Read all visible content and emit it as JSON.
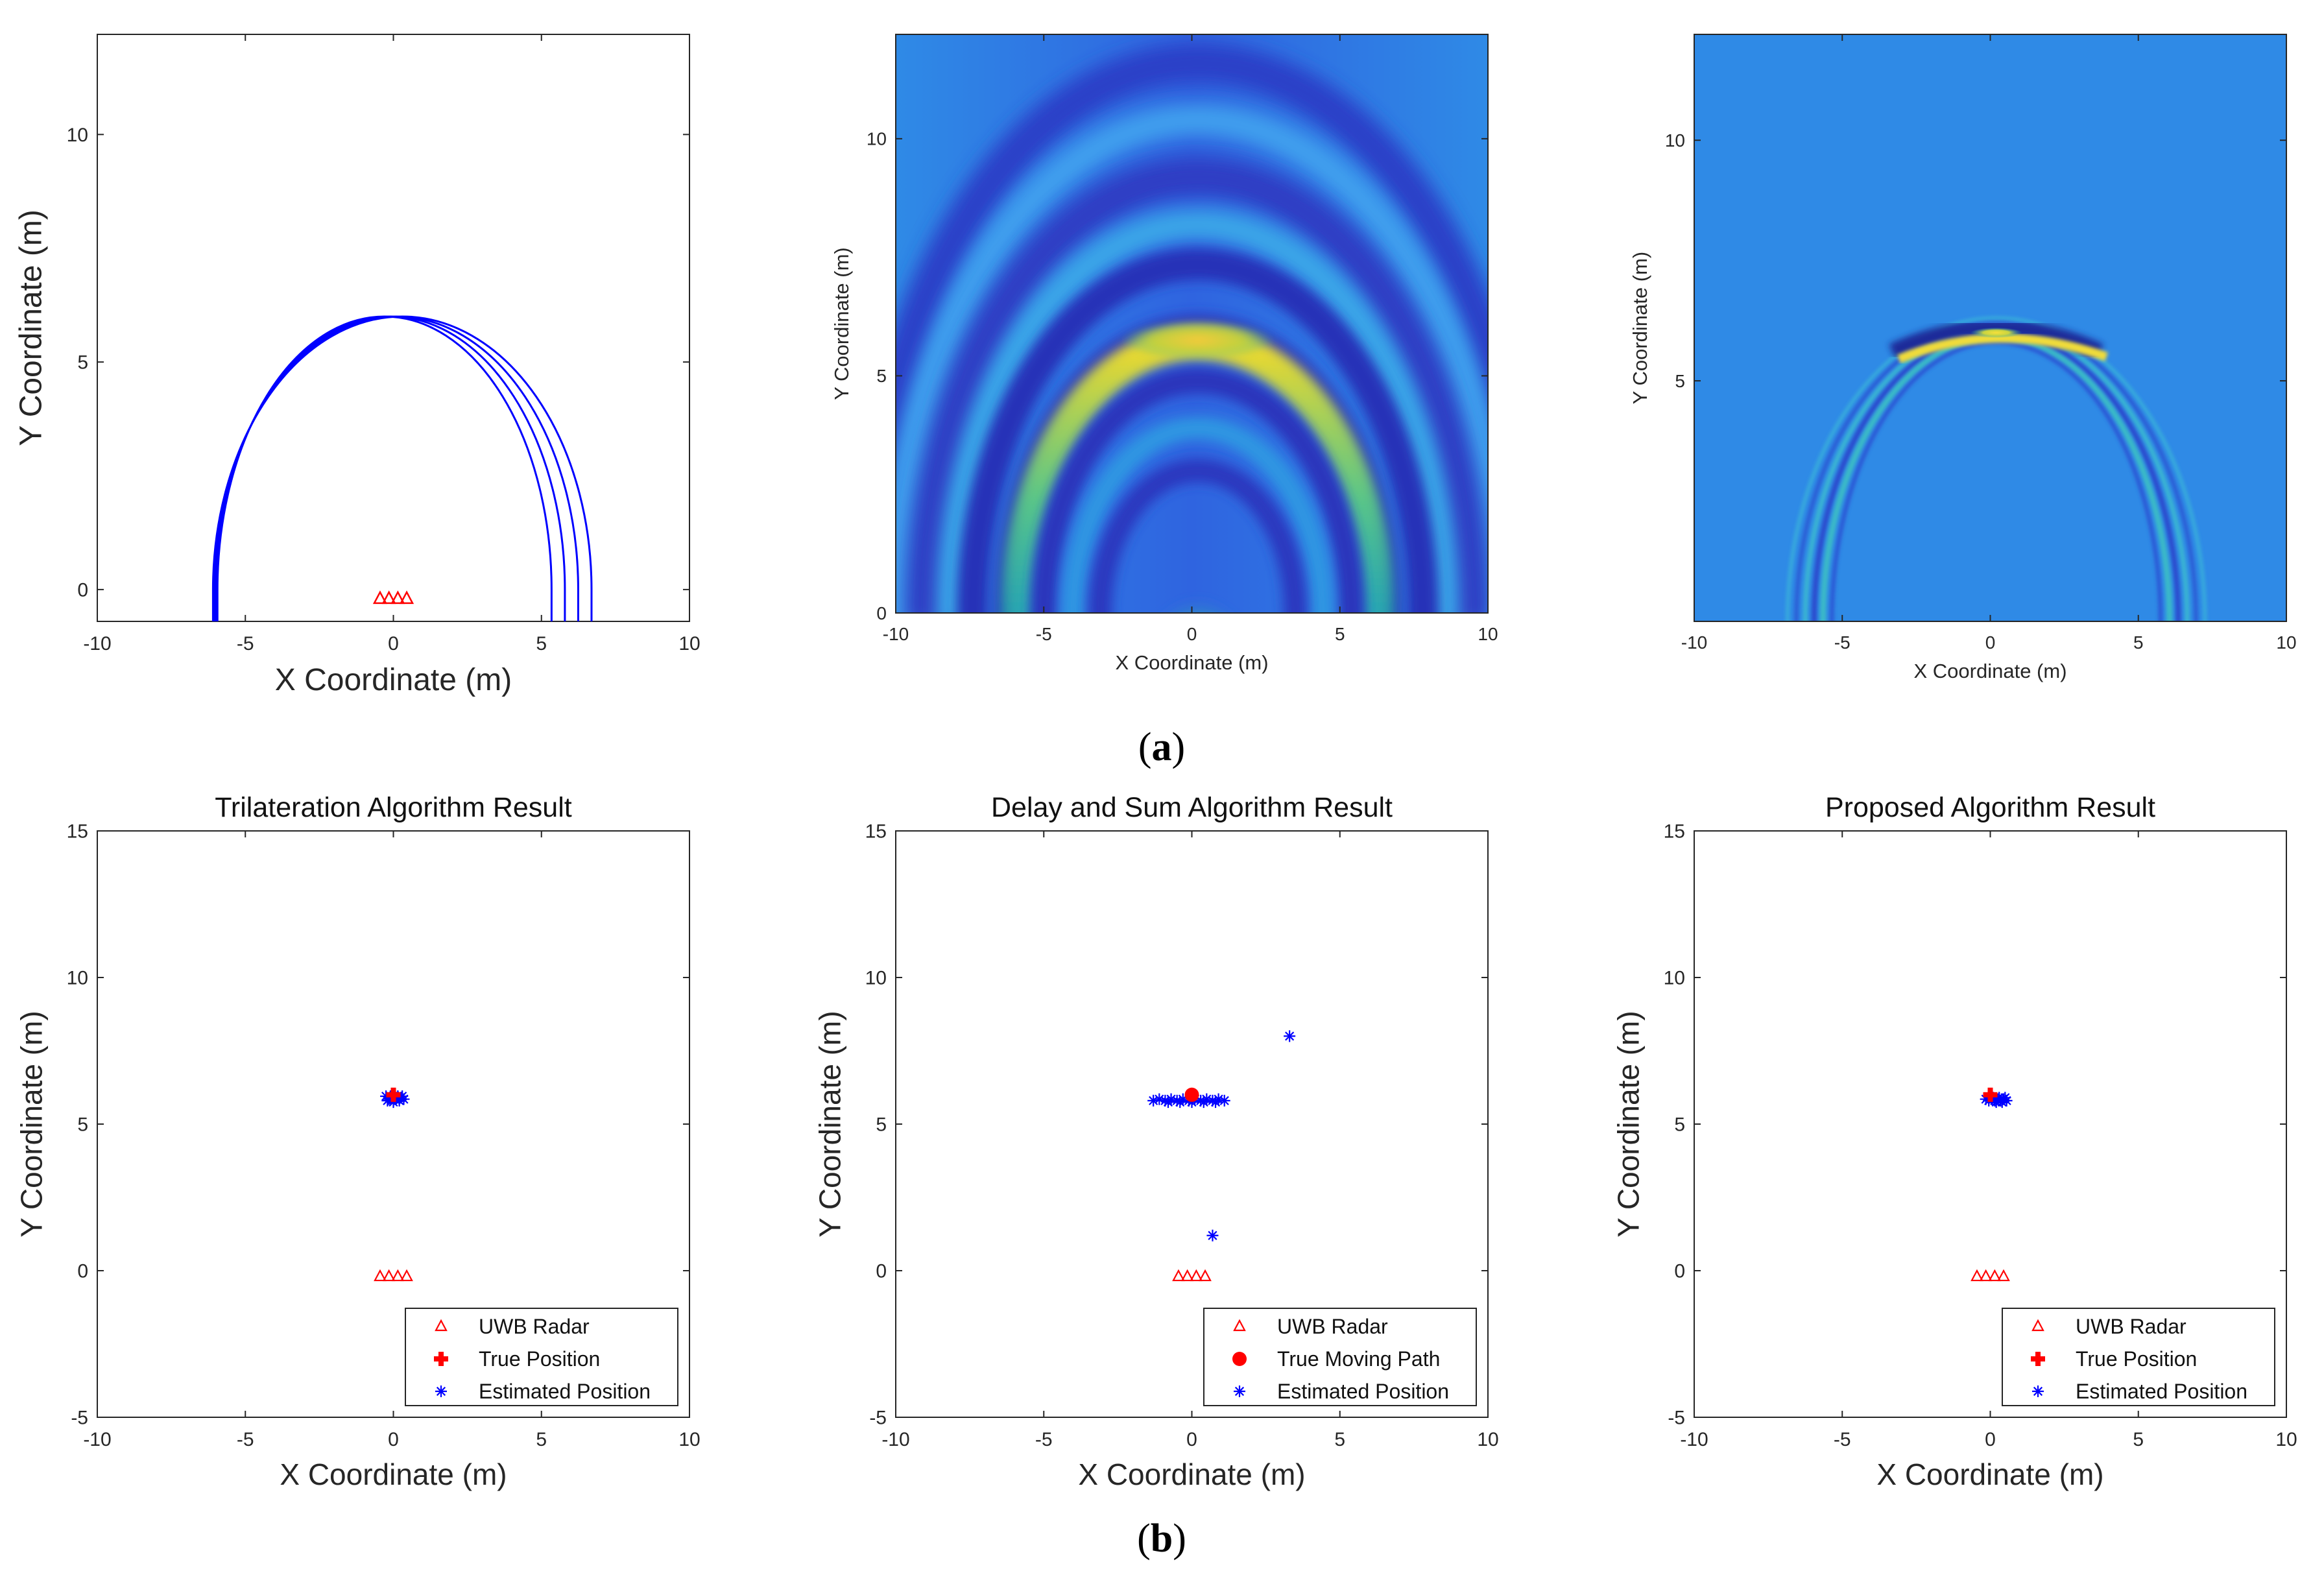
{
  "figure": {
    "label_a": "a",
    "label_b": "b"
  },
  "colors": {
    "contour": "#0000ff",
    "radar": "#ff0000",
    "true_position": "#ff0000",
    "estimated": "#0000ff",
    "axis": "#262626",
    "heatmap_bg_blue": "#2f8ae6"
  },
  "chart_data": [
    {
      "id": "a1",
      "type": "line",
      "title": "",
      "xlabel": "X Coordinate (m)",
      "ylabel": "Y Coordinate (m)",
      "xlim": [
        -10,
        10
      ],
      "ylim": [
        -0.7,
        12.2
      ],
      "xticks": [
        -10,
        -5,
        0,
        5,
        10
      ],
      "xtick_labels": [
        "-10",
        "-5",
        "0",
        "5",
        "10"
      ],
      "yticks": [
        0,
        5,
        10
      ],
      "ytick_labels": [
        "0",
        "5",
        "10"
      ],
      "series": [
        {
          "kind": "ellipse",
          "focus_x": -0.3,
          "y_top": 6.0
        },
        {
          "kind": "ellipse",
          "focus_x": -0.1,
          "y_top": 6.0
        },
        {
          "kind": "ellipse",
          "focus_x": 0.1,
          "y_top": 6.0
        },
        {
          "kind": "ellipse",
          "focus_x": 0.3,
          "y_top": 6.0
        }
      ],
      "radar_x": [
        -0.45,
        -0.15,
        0.15,
        0.45
      ],
      "radar_y": -0.2
    },
    {
      "id": "a2",
      "type": "heatmap",
      "title": "",
      "xlabel": "X Coordinate (m)",
      "ylabel": "Y Coordinate (m)",
      "xlim": [
        -10,
        10
      ],
      "ylim": [
        0,
        12.2
      ],
      "xticks": [
        -10,
        -5,
        0,
        5,
        10
      ],
      "xtick_labels": [
        "-10",
        "-5",
        "0",
        "5",
        "10"
      ],
      "yticks": [
        0,
        5,
        10
      ],
      "ytick_labels": [
        "0",
        "5",
        "10"
      ],
      "peak": {
        "x": 0.2,
        "y": 6.0
      }
    },
    {
      "id": "a3",
      "type": "heatmap",
      "title": "",
      "xlabel": "X Coordinate (m)",
      "ylabel": "Y Coordinate (m)",
      "xlim": [
        -10,
        10
      ],
      "ylim": [
        0,
        12.2
      ],
      "xticks": [
        -10,
        -5,
        0,
        5,
        10
      ],
      "xtick_labels": [
        "-10",
        "-5",
        "0",
        "5",
        "10"
      ],
      "yticks": [
        5,
        10
      ],
      "ytick_labels": [
        "5",
        "10"
      ],
      "peak": {
        "x": 0.2,
        "y": 6.0
      }
    },
    {
      "id": "b1",
      "type": "scatter",
      "title": "Trilateration Algorithm Result",
      "xlabel": "X Coordinate (m)",
      "ylabel": "Y Coordinate (m)",
      "xlim": [
        -10,
        10
      ],
      "ylim": [
        -5,
        15
      ],
      "xticks": [
        -10,
        -5,
        0,
        5,
        10
      ],
      "xtick_labels": [
        "-10",
        "-5",
        "0",
        "5",
        "10"
      ],
      "yticks": [
        -5,
        0,
        5,
        10,
        15
      ],
      "ytick_labels": [
        "-5",
        "0",
        "5",
        "10",
        "15"
      ],
      "legend": {
        "position": "bottom-right",
        "entries": [
          "UWB Radar",
          "True Position",
          "Estimated Position"
        ]
      },
      "true_marker": "plus",
      "radar": {
        "x": [
          -0.45,
          -0.15,
          0.15,
          0.45
        ],
        "y": [
          -0.2,
          -0.2,
          -0.2,
          -0.2
        ]
      },
      "true": {
        "x": [
          0.0
        ],
        "y": [
          6.0
        ]
      },
      "estimated": {
        "x": [
          -0.25,
          -0.15,
          -0.05,
          0.05,
          0.15,
          0.25,
          0.35,
          -0.2,
          0.0,
          0.2,
          0.3,
          0.1,
          -0.1
        ],
        "y": [
          5.95,
          5.85,
          5.9,
          5.85,
          5.95,
          5.9,
          5.85,
          5.8,
          5.75,
          5.8,
          5.95,
          5.9,
          5.95
        ]
      }
    },
    {
      "id": "b2",
      "type": "scatter",
      "title": "Delay and Sum Algorithm Result",
      "xlabel": "X Coordinate (m)",
      "ylabel": "Y Coordinate (m)",
      "xlim": [
        -10,
        10
      ],
      "ylim": [
        -5,
        15
      ],
      "xticks": [
        -10,
        -5,
        0,
        5,
        10
      ],
      "xtick_labels": [
        "-10",
        "-5",
        "0",
        "5",
        "10"
      ],
      "yticks": [
        -5,
        0,
        5,
        10,
        15
      ],
      "ytick_labels": [
        "-5",
        "0",
        "5",
        "10",
        "15"
      ],
      "legend": {
        "position": "bottom-right",
        "entries": [
          "UWB Radar",
          "True Moving Path",
          "Estimated Position"
        ]
      },
      "true_marker": "dot",
      "radar": {
        "x": [
          -0.45,
          -0.15,
          0.15,
          0.45
        ],
        "y": [
          -0.2,
          -0.2,
          -0.2,
          -0.2
        ]
      },
      "true": {
        "x": [
          0.0
        ],
        "y": [
          6.0
        ]
      },
      "estimated": {
        "x": [
          -1.3,
          -1.1,
          -0.9,
          -0.7,
          -0.5,
          -0.3,
          -0.1,
          0.1,
          0.3,
          0.5,
          0.7,
          0.9,
          1.1,
          -0.8,
          -0.4,
          0.0,
          0.4,
          0.8,
          3.3,
          0.7
        ],
        "y": [
          5.8,
          5.85,
          5.8,
          5.85,
          5.8,
          5.85,
          5.8,
          5.85,
          5.8,
          5.85,
          5.8,
          5.85,
          5.8,
          5.75,
          5.75,
          5.75,
          5.75,
          5.75,
          8.0,
          1.2
        ]
      }
    },
    {
      "id": "b3",
      "type": "scatter",
      "title": "Proposed Algorithm Result",
      "xlabel": "X Coordinate (m)",
      "ylabel": "Y Coordinate (m)",
      "xlim": [
        -10,
        10
      ],
      "ylim": [
        -5,
        15
      ],
      "xticks": [
        -10,
        -5,
        0,
        5,
        10
      ],
      "xtick_labels": [
        "-10",
        "-5",
        "0",
        "5",
        "10"
      ],
      "yticks": [
        -5,
        0,
        5,
        10,
        15
      ],
      "ytick_labels": [
        "-5",
        "0",
        "5",
        "10",
        "15"
      ],
      "legend": {
        "position": "bottom-right",
        "entries": [
          "UWB Radar",
          "True Position",
          "Estimated Position"
        ]
      },
      "true_marker": "plus",
      "radar": {
        "x": [
          -0.45,
          -0.15,
          0.15,
          0.45
        ],
        "y": [
          -0.2,
          -0.2,
          -0.2,
          -0.2
        ]
      },
      "true": {
        "x": [
          0.0
        ],
        "y": [
          6.0
        ]
      },
      "estimated": {
        "x": [
          -0.15,
          -0.05,
          0.05,
          0.15,
          0.25,
          0.35,
          0.45,
          0.55,
          0.1,
          0.3,
          0.5,
          0.2,
          0.4
        ],
        "y": [
          5.85,
          5.8,
          5.85,
          5.8,
          5.85,
          5.8,
          5.85,
          5.8,
          5.9,
          5.9,
          5.9,
          5.75,
          5.75
        ]
      }
    }
  ]
}
